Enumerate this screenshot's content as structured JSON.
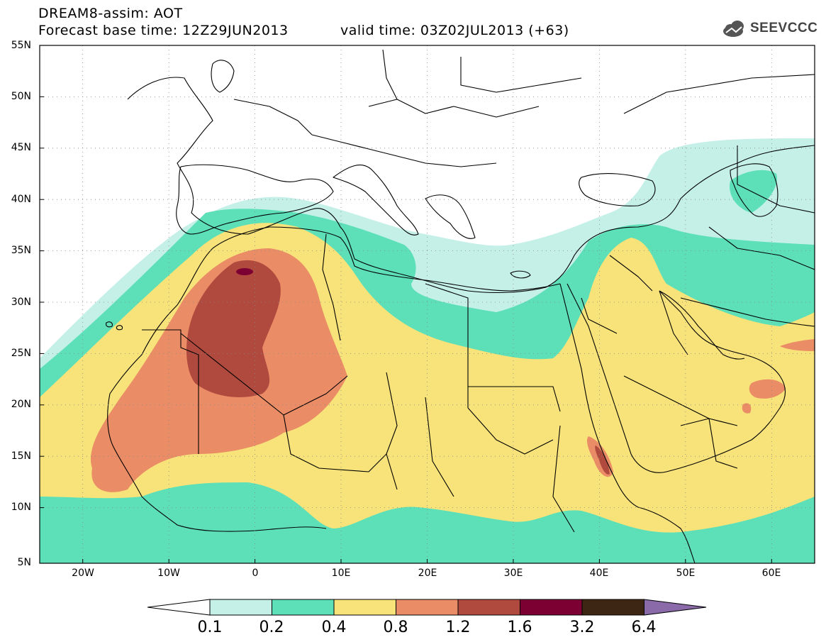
{
  "header": {
    "title_line1": "DREAM8-assim: AOT",
    "title_line2": "Forecast base time: 12Z29JUN2013",
    "valid_time": "valid time: 03Z02JUL2013 (+63)",
    "logo_text": "SEEVCCC"
  },
  "map": {
    "lat_labels": [
      "55N",
      "50N",
      "45N",
      "40N",
      "35N",
      "30N",
      "25N",
      "20N",
      "15N",
      "10N",
      "5N"
    ],
    "lon_labels": [
      "20W",
      "10W",
      "0",
      "10E",
      "20E",
      "30E",
      "40E",
      "50E",
      "60E"
    ],
    "extent": {
      "lon": [
        -25,
        65
      ],
      "lat": [
        5,
        55
      ]
    }
  },
  "colorbar": {
    "labels": [
      "0.1",
      "0.2",
      "0.4",
      "0.8",
      "1.2",
      "1.6",
      "3.2",
      "6.4"
    ],
    "colors": [
      "#ffffff",
      "#c4f0e8",
      "#5de0b8",
      "#f7e37a",
      "#ea8c66",
      "#b04a3e",
      "#7d0033",
      "#3e2615",
      "#8a6aa8"
    ]
  }
}
